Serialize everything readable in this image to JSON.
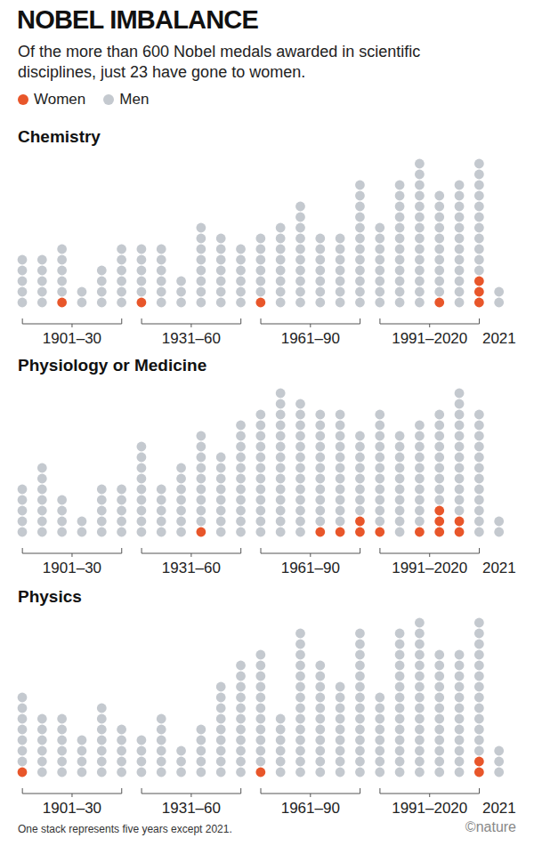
{
  "title": "NOBEL IMBALANCE",
  "subtitle": "Of the more than 600 Nobel medals awarded in scientific disciplines, just 23 have gone to women.",
  "legend": "top-left",
  "note": "One stack represents five years except 2021.",
  "credit": "©nature",
  "chart_data": [
    {
      "type": "bar",
      "title": "Chemistry",
      "stacked": true,
      "tick_labels": "x",
      "ylim": [
        0,
        15
      ],
      "categories": [
        null,
        null,
        "1901–30",
        null,
        null,
        null,
        null,
        null,
        "1931–60",
        null,
        null,
        null,
        null,
        null,
        "1961–90",
        null,
        null,
        null,
        null,
        null,
        "1991–2020",
        null,
        null,
        null,
        "2021"
      ],
      "series": [
        {
          "name": "Women",
          "color": "#e8562a",
          "values": [
            0,
            0,
            1,
            0,
            0,
            0,
            1,
            0,
            0,
            0,
            0,
            0,
            1,
            0,
            0,
            0,
            0,
            0,
            0,
            0,
            0,
            1,
            0,
            3,
            0
          ]
        },
        {
          "name": "Men",
          "color": "#c4c9cf",
          "values": [
            5,
            5,
            5,
            2,
            4,
            6,
            5,
            6,
            3,
            8,
            7,
            6,
            6,
            8,
            10,
            7,
            7,
            12,
            8,
            12,
            14,
            10,
            12,
            11,
            2
          ]
        }
      ]
    },
    {
      "type": "bar",
      "title": "Physiology or Medicine",
      "stacked": true,
      "tick_labels": "x",
      "ylim": [
        0,
        15
      ],
      "categories": [
        null,
        null,
        "1901–30",
        null,
        null,
        null,
        null,
        null,
        "1931–60",
        null,
        null,
        null,
        null,
        null,
        "1961–90",
        null,
        null,
        null,
        null,
        null,
        "1991–2020",
        null,
        null,
        null,
        "2021"
      ],
      "series": [
        {
          "name": "Women",
          "color": "#e8562a",
          "values": [
            0,
            0,
            0,
            0,
            0,
            0,
            0,
            0,
            0,
            1,
            0,
            0,
            0,
            0,
            0,
            1,
            1,
            2,
            1,
            0,
            1,
            3,
            2,
            0,
            0
          ]
        },
        {
          "name": "Men",
          "color": "#c4c9cf",
          "values": [
            5,
            7,
            4,
            2,
            5,
            5,
            9,
            5,
            7,
            9,
            8,
            11,
            12,
            14,
            13,
            11,
            11,
            8,
            11,
            10,
            10,
            9,
            12,
            12,
            2
          ]
        }
      ]
    },
    {
      "type": "bar",
      "title": "Physics",
      "stacked": true,
      "tick_labels": "x",
      "ylim": [
        0,
        15
      ],
      "categories": [
        null,
        null,
        "1901–30",
        null,
        null,
        null,
        null,
        null,
        "1931–60",
        null,
        null,
        null,
        null,
        null,
        "1961–90",
        null,
        null,
        null,
        null,
        null,
        "1991–2020",
        null,
        null,
        null,
        "2021"
      ],
      "series": [
        {
          "name": "Women",
          "color": "#e8562a",
          "values": [
            1,
            0,
            0,
            0,
            0,
            0,
            0,
            0,
            0,
            0,
            0,
            0,
            1,
            0,
            0,
            0,
            0,
            0,
            0,
            0,
            0,
            0,
            0,
            2,
            0
          ]
        },
        {
          "name": "Men",
          "color": "#c4c9cf",
          "values": [
            7,
            6,
            6,
            4,
            7,
            5,
            4,
            6,
            3,
            5,
            9,
            11,
            11,
            6,
            14,
            11,
            9,
            14,
            8,
            14,
            15,
            12,
            12,
            13,
            3
          ]
        }
      ]
    }
  ]
}
